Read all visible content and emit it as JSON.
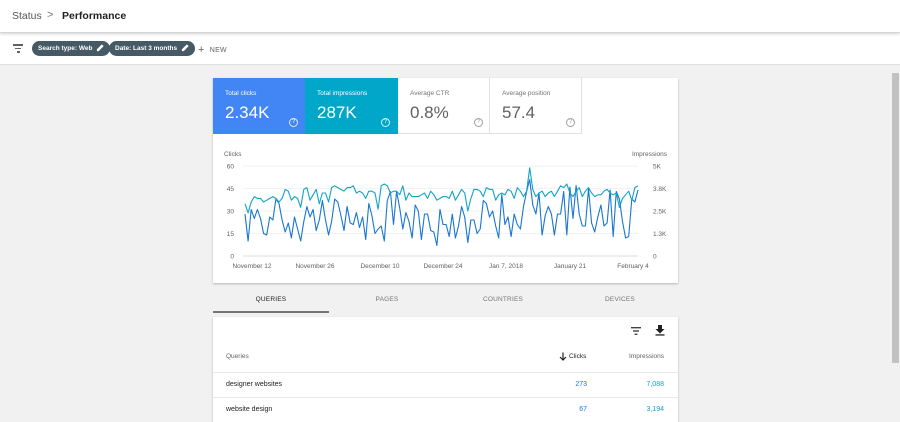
{
  "breadcrumb": {
    "parent": "Status",
    "separator": ">",
    "current": "Performance"
  },
  "filters": {
    "chips": [
      {
        "label": "Search type: Web"
      },
      {
        "label": "Date: Last 3 months"
      }
    ],
    "new_label": "NEW"
  },
  "metrics": {
    "clicks": {
      "label": "Total clicks",
      "value": "2.34K"
    },
    "impressions": {
      "label": "Total impressions",
      "value": "287K"
    },
    "ctr": {
      "label": "Average CTR",
      "value": "0.8%"
    },
    "position": {
      "label": "Average position",
      "value": "57.4"
    },
    "help_glyph": "?"
  },
  "chart_data": {
    "type": "line",
    "left_axis_title": "Clicks",
    "right_axis_title": "Impressions",
    "left_ticks": [
      "60",
      "45",
      "30",
      "15",
      "0"
    ],
    "right_ticks": [
      "5K",
      "3.8K",
      "2.5K",
      "1.3K",
      "0"
    ],
    "x_ticks": [
      "November 12",
      "November 26",
      "December 10",
      "December 24",
      "Jan 7, 2018",
      "January 21",
      "February 4"
    ],
    "left_ylim": [
      0,
      60
    ],
    "right_ylim": [
      0,
      5000
    ],
    "grid": true,
    "series": [
      {
        "axis": "left",
        "color": "#1976d2",
        "values": [
          28,
          10,
          31,
          25,
          31,
          25,
          15,
          14,
          26,
          24,
          38,
          35,
          24,
          16,
          22,
          12,
          26,
          18,
          10,
          23,
          33,
          26,
          31,
          17,
          24,
          37,
          24,
          14,
          23,
          38,
          36,
          27,
          17,
          33,
          22,
          21,
          29,
          19,
          26,
          11,
          35,
          27,
          15,
          18,
          20,
          10,
          37,
          43,
          21,
          43,
          32,
          18,
          29,
          23,
          12,
          34,
          30,
          11,
          28,
          28,
          17,
          16,
          7,
          31,
          21,
          21,
          13,
          28,
          12,
          20,
          33,
          26,
          9,
          24,
          24,
          15,
          18,
          37,
          35,
          26,
          30,
          20,
          12,
          41,
          21,
          26,
          13,
          28,
          21,
          18,
          33,
          43,
          51,
          34,
          28,
          42,
          14,
          27,
          33,
          28,
          14,
          28,
          28,
          43,
          14,
          46,
          25,
          47,
          28,
          20,
          20,
          45,
          22,
          16,
          26,
          34,
          20,
          22,
          44,
          13,
          43,
          38,
          23,
          12,
          13,
          38,
          36,
          44
        ]
      },
      {
        "axis": "right",
        "color": "#12a4c4",
        "values": [
          2900,
          2400,
          3000,
          3300,
          3200,
          3200,
          3000,
          3100,
          3200,
          3300,
          3200,
          3000,
          3200,
          3700,
          3600,
          3100,
          3300,
          3200,
          2700,
          3700,
          3800,
          3100,
          3400,
          3700,
          2900,
          3500,
          3500,
          3000,
          3800,
          3900,
          3800,
          3700,
          3600,
          3800,
          3800,
          3900,
          3500,
          3600,
          3500,
          3200,
          3600,
          3600,
          3500,
          2600,
          3900,
          4000,
          3900,
          3500,
          3600,
          3600,
          3400,
          3900,
          3100,
          3500,
          3300,
          3300,
          3300,
          3400,
          3500,
          3200,
          3600,
          3400,
          3100,
          3200,
          3300,
          3300,
          3200,
          3600,
          3100,
          3400,
          3700,
          3500,
          2500,
          3200,
          3700,
          3700,
          3600,
          3300,
          3800,
          3700,
          3700,
          3100,
          3400,
          3500,
          3400,
          3700,
          3600,
          3200,
          3800,
          3600,
          3300,
          3600,
          4900,
          3700,
          3300,
          3500,
          3600,
          3300,
          3500,
          3600,
          3300,
          3600,
          3900,
          3800,
          4000,
          3500,
          3300,
          3600,
          3800,
          3300,
          3600,
          3800,
          3500,
          3300,
          3400,
          3400,
          3600,
          3700,
          3500,
          3400,
          3500,
          2700,
          3200,
          3400,
          3600,
          3100,
          3800,
          3900
        ]
      }
    ]
  },
  "tabs": [
    {
      "label": "QUERIES",
      "active": true
    },
    {
      "label": "PAGES",
      "active": false
    },
    {
      "label": "COUNTRIES",
      "active": false
    },
    {
      "label": "DEVICES",
      "active": false
    }
  ],
  "table": {
    "headers": {
      "query": "Queries",
      "clicks": "Clicks",
      "impressions": "Impressions"
    },
    "sort_icon": "arrow-down-icon",
    "tool_icons": [
      "filter-icon",
      "download-icon"
    ],
    "rows": [
      {
        "query": "designer websites",
        "clicks": "273",
        "impressions": "7,088"
      },
      {
        "query": "website design",
        "clicks": "67",
        "impressions": "3,194"
      }
    ]
  },
  "colors": {
    "clicks": "#4285f4",
    "impressions": "#00a7c9",
    "clicks_line": "#1976d2",
    "impressions_line": "#12a4c4"
  }
}
